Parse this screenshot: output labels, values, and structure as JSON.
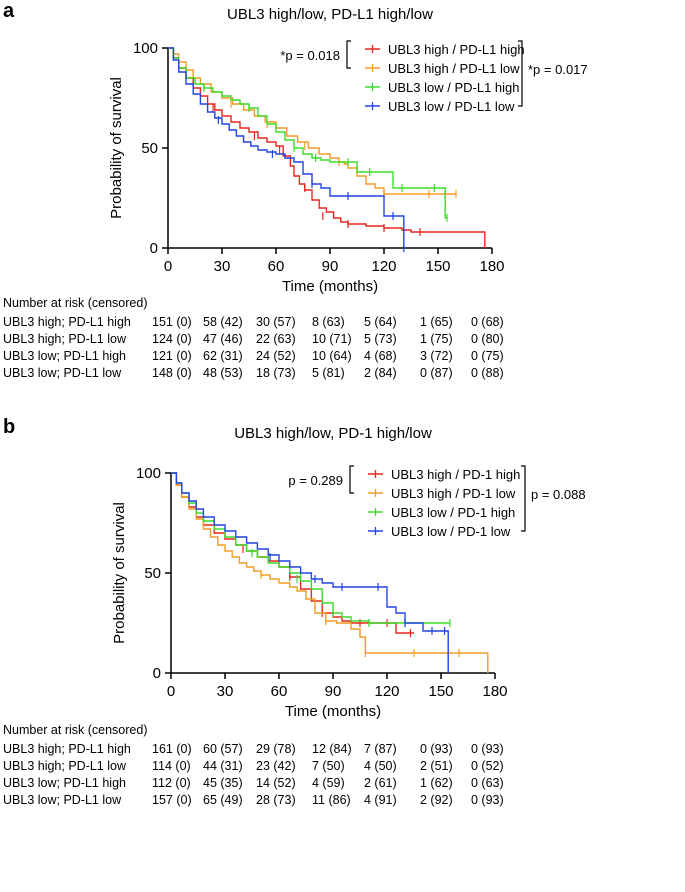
{
  "panels": [
    {
      "label": "a",
      "risk": {
        "title": "Number at risk (censored)",
        "rows": [
          {
            "label": "UBL3 high; PD-L1 high",
            "cells": [
              "151 (0)",
              "58 (42)",
              "30 (57)",
              "8 (63)",
              "5 (64)",
              "1 (65)",
              "0 (68)"
            ]
          },
          {
            "label": "UBL3 high; PD-L1 low",
            "cells": [
              "124 (0)",
              "47 (46)",
              "22 (63)",
              "10 (71)",
              "5 (73)",
              "1 (75)",
              "0 (80)"
            ]
          },
          {
            "label": "UBL3 low; PD-L1 high",
            "cells": [
              "121 (0)",
              "62 (31)",
              "24 (52)",
              "10 (64)",
              "4 (68)",
              "3 (72)",
              "0 (75)"
            ]
          },
          {
            "label": "UBL3 low; PD-L1 low",
            "cells": [
              "148 (0)",
              "48 (53)",
              "18 (73)",
              "5 (81)",
              "2 (84)",
              "0 (87)",
              "0 (88)"
            ]
          }
        ]
      }
    },
    {
      "label": "b",
      "risk": {
        "title": "Number at risk (censored)",
        "rows": [
          {
            "label": "UBL3 high; PD-L1 high",
            "cells": [
              "161 (0)",
              "60 (57)",
              "29 (78)",
              "12 (84)",
              "7 (87)",
              "0 (93)",
              "0 (93)"
            ]
          },
          {
            "label": "UBL3 high; PD-L1 low",
            "cells": [
              "114 (0)",
              "44 (31)",
              "23 (42)",
              "7 (50)",
              "4 (50)",
              "2 (51)",
              "0 (52)"
            ]
          },
          {
            "label": "UBL3 low; PD-L1 high",
            "cells": [
              "112 (0)",
              "45 (35)",
              "14 (52)",
              "4 (59)",
              "2 (61)",
              "1 (62)",
              "0 (63)"
            ]
          },
          {
            "label": "UBL3 low; PD-L1 low",
            "cells": [
              "157 (0)",
              "65 (49)",
              "28 (73)",
              "11 (86)",
              "4 (91)",
              "2 (92)",
              "0 (93)"
            ]
          }
        ]
      }
    }
  ],
  "chart_data": [
    {
      "type": "line",
      "subtype": "kaplan-meier",
      "title": "UBL3 high/low, PD-L1 high/low",
      "xlabel": "Time (months)",
      "ylabel": "Probability of survival",
      "xlim": [
        0,
        180
      ],
      "ylim": [
        0,
        100
      ],
      "xticks": [
        0,
        30,
        60,
        90,
        120,
        150,
        180
      ],
      "yticks": [
        0,
        50,
        100
      ],
      "legend_position": "top-right",
      "annotations": {
        "left_p": "*p = 0.018",
        "right_p": "*p = 0.017"
      },
      "series": [
        {
          "name": "UBL3 high / PD-L1 high",
          "color": "#e8261e",
          "x": [
            0,
            3,
            6,
            10,
            14,
            18,
            22,
            26,
            30,
            35,
            40,
            45,
            50,
            55,
            60,
            64,
            68,
            70,
            73,
            76,
            80,
            84,
            88,
            92,
            96,
            100,
            110,
            120,
            130,
            135,
            140,
            176
          ],
          "y": [
            100,
            95,
            90,
            85,
            80,
            76,
            72,
            69,
            66,
            63,
            60,
            58,
            55,
            53,
            51,
            46,
            41,
            36,
            32,
            29,
            24,
            20,
            18,
            15,
            13,
            12,
            11,
            10,
            9,
            8,
            8,
            0
          ],
          "censors": [
            [
              25,
              70
            ],
            [
              48,
              56
            ],
            [
              62,
              49
            ],
            [
              76,
              30
            ],
            [
              86,
              16
            ],
            [
              100,
              12
            ],
            [
              120,
              10
            ],
            [
              140,
              8
            ]
          ]
        },
        {
          "name": "UBL3 high / PD-L1 low",
          "color": "#f39c26",
          "x": [
            0,
            3,
            6,
            10,
            14,
            18,
            24,
            30,
            36,
            42,
            48,
            54,
            60,
            66,
            72,
            78,
            84,
            90,
            95,
            98,
            100,
            105,
            110,
            115,
            120,
            150,
            160
          ],
          "y": [
            100,
            97,
            93,
            89,
            85,
            82,
            78,
            75,
            72,
            69,
            66,
            63,
            60,
            56,
            53,
            50,
            47,
            45,
            43,
            42,
            40,
            36,
            32,
            30,
            27,
            27,
            27
          ],
          "censors": [
            [
              35,
              72
            ],
            [
              55,
              62
            ],
            [
              76,
              51
            ],
            [
              95,
              43
            ],
            [
              120,
              27
            ],
            [
              145,
              27
            ],
            [
              160,
              27
            ]
          ]
        },
        {
          "name": "UBL3 low / PD-L1 high",
          "color": "#3bdc2a",
          "x": [
            0,
            3,
            6,
            10,
            15,
            20,
            25,
            30,
            35,
            40,
            45,
            50,
            55,
            60,
            65,
            70,
            75,
            80,
            85,
            90,
            100,
            105,
            110,
            115,
            120,
            125,
            130,
            140,
            152,
            154,
            155
          ],
          "y": [
            100,
            95,
            90,
            85,
            82,
            80,
            78,
            76,
            74,
            72,
            70,
            66,
            62,
            58,
            54,
            50,
            47,
            45,
            44,
            43,
            43,
            38,
            38,
            38,
            38,
            30,
            30,
            30,
            30,
            15,
            15
          ],
          "censors": [
            [
              20,
              80
            ],
            [
              45,
              70
            ],
            [
              70,
              50
            ],
            [
              82,
              45
            ],
            [
              100,
              43
            ],
            [
              112,
              38
            ],
            [
              130,
              30
            ],
            [
              148,
              30
            ],
            [
              155,
              15
            ]
          ]
        },
        {
          "name": "UBL3 low / PD-L1 low",
          "color": "#2244e4",
          "x": [
            0,
            3,
            6,
            10,
            14,
            18,
            22,
            26,
            30,
            34,
            38,
            42,
            46,
            50,
            55,
            60,
            65,
            70,
            75,
            80,
            85,
            90,
            100,
            110,
            120,
            131
          ],
          "y": [
            100,
            94,
            88,
            82,
            77,
            72,
            68,
            65,
            62,
            59,
            56,
            53,
            51,
            49,
            48,
            47,
            45,
            43,
            37,
            32,
            30,
            26,
            26,
            26,
            16,
            0
          ],
          "censors": [
            [
              28,
              64
            ],
            [
              58,
              47
            ],
            [
              80,
              32
            ],
            [
              100,
              26
            ],
            [
              125,
              16
            ],
            [
              131,
              0
            ]
          ]
        }
      ]
    },
    {
      "type": "line",
      "subtype": "kaplan-meier",
      "title": "UBL3 high/low, PD-1 high/low",
      "xlabel": "Time (months)",
      "ylabel": "Probability of survival",
      "xlim": [
        0,
        180
      ],
      "ylim": [
        0,
        100
      ],
      "xticks": [
        0,
        30,
        60,
        90,
        120,
        150,
        180
      ],
      "yticks": [
        0,
        50,
        100
      ],
      "legend_position": "top-right",
      "annotations": {
        "left_p": "p = 0.289",
        "right_p": "p = 0.088"
      },
      "series": [
        {
          "name": "UBL3 high / PD-1 high",
          "color": "#e8261e",
          "x": [
            0,
            3,
            6,
            10,
            14,
            18,
            24,
            30,
            36,
            42,
            48,
            54,
            60,
            66,
            72,
            78,
            84,
            90,
            95,
            100,
            110,
            120,
            125,
            130,
            135
          ],
          "y": [
            100,
            94,
            88,
            83,
            78,
            74,
            70,
            67,
            64,
            61,
            58,
            56,
            53,
            48,
            42,
            36,
            30,
            28,
            26,
            25,
            25,
            25,
            20,
            20,
            20
          ],
          "censors": [
            [
              40,
              62
            ],
            [
              66,
              48
            ],
            [
              84,
              30
            ],
            [
              105,
              25
            ],
            [
              120,
              25
            ],
            [
              133,
              20
            ]
          ]
        },
        {
          "name": "UBL3 high / PD-1 low",
          "color": "#f39c26",
          "x": [
            0,
            3,
            6,
            10,
            14,
            18,
            22,
            26,
            30,
            34,
            38,
            42,
            46,
            50,
            55,
            60,
            66,
            70,
            75,
            80,
            86,
            92,
            100,
            105,
            108,
            120,
            150,
            170,
            176
          ],
          "y": [
            100,
            94,
            88,
            82,
            77,
            72,
            68,
            64,
            61,
            58,
            55,
            53,
            51,
            49,
            47,
            45,
            43,
            41,
            37,
            30,
            26,
            25,
            22,
            18,
            10,
            10,
            10,
            10,
            0
          ],
          "censors": [
            [
              50,
              49
            ],
            [
              86,
              26
            ],
            [
              108,
              10
            ],
            [
              135,
              10
            ],
            [
              160,
              10
            ]
          ]
        },
        {
          "name": "UBL3 low / PD-1 high",
          "color": "#3bdc2a",
          "x": [
            0,
            3,
            6,
            10,
            14,
            18,
            24,
            30,
            36,
            42,
            48,
            54,
            60,
            66,
            72,
            78,
            84,
            90,
            95,
            100,
            110,
            120,
            130,
            140,
            150,
            155
          ],
          "y": [
            100,
            95,
            90,
            85,
            80,
            76,
            72,
            68,
            64,
            61,
            58,
            55,
            53,
            50,
            46,
            42,
            35,
            30,
            28,
            26,
            25,
            25,
            25,
            25,
            25,
            25
          ],
          "censors": [
            [
              45,
              60
            ],
            [
              70,
              47
            ],
            [
              90,
              30
            ],
            [
              110,
              25
            ],
            [
              130,
              25
            ],
            [
              155,
              25
            ]
          ]
        },
        {
          "name": "UBL3 low / PD-1 low",
          "color": "#2244e4",
          "x": [
            0,
            3,
            6,
            10,
            14,
            18,
            24,
            30,
            36,
            42,
            48,
            54,
            60,
            66,
            72,
            78,
            84,
            90,
            100,
            110,
            120,
            125,
            130,
            140,
            150,
            152,
            154
          ],
          "y": [
            100,
            95,
            90,
            86,
            82,
            78,
            74,
            71,
            68,
            65,
            62,
            59,
            56,
            53,
            50,
            47,
            45,
            43,
            43,
            43,
            33,
            30,
            25,
            21,
            21,
            21,
            0
          ],
          "censors": [
            [
              55,
              58
            ],
            [
              80,
              47
            ],
            [
              95,
              43
            ],
            [
              115,
              43
            ],
            [
              130,
              25
            ],
            [
              145,
              21
            ],
            [
              152,
              21
            ]
          ]
        }
      ]
    }
  ]
}
